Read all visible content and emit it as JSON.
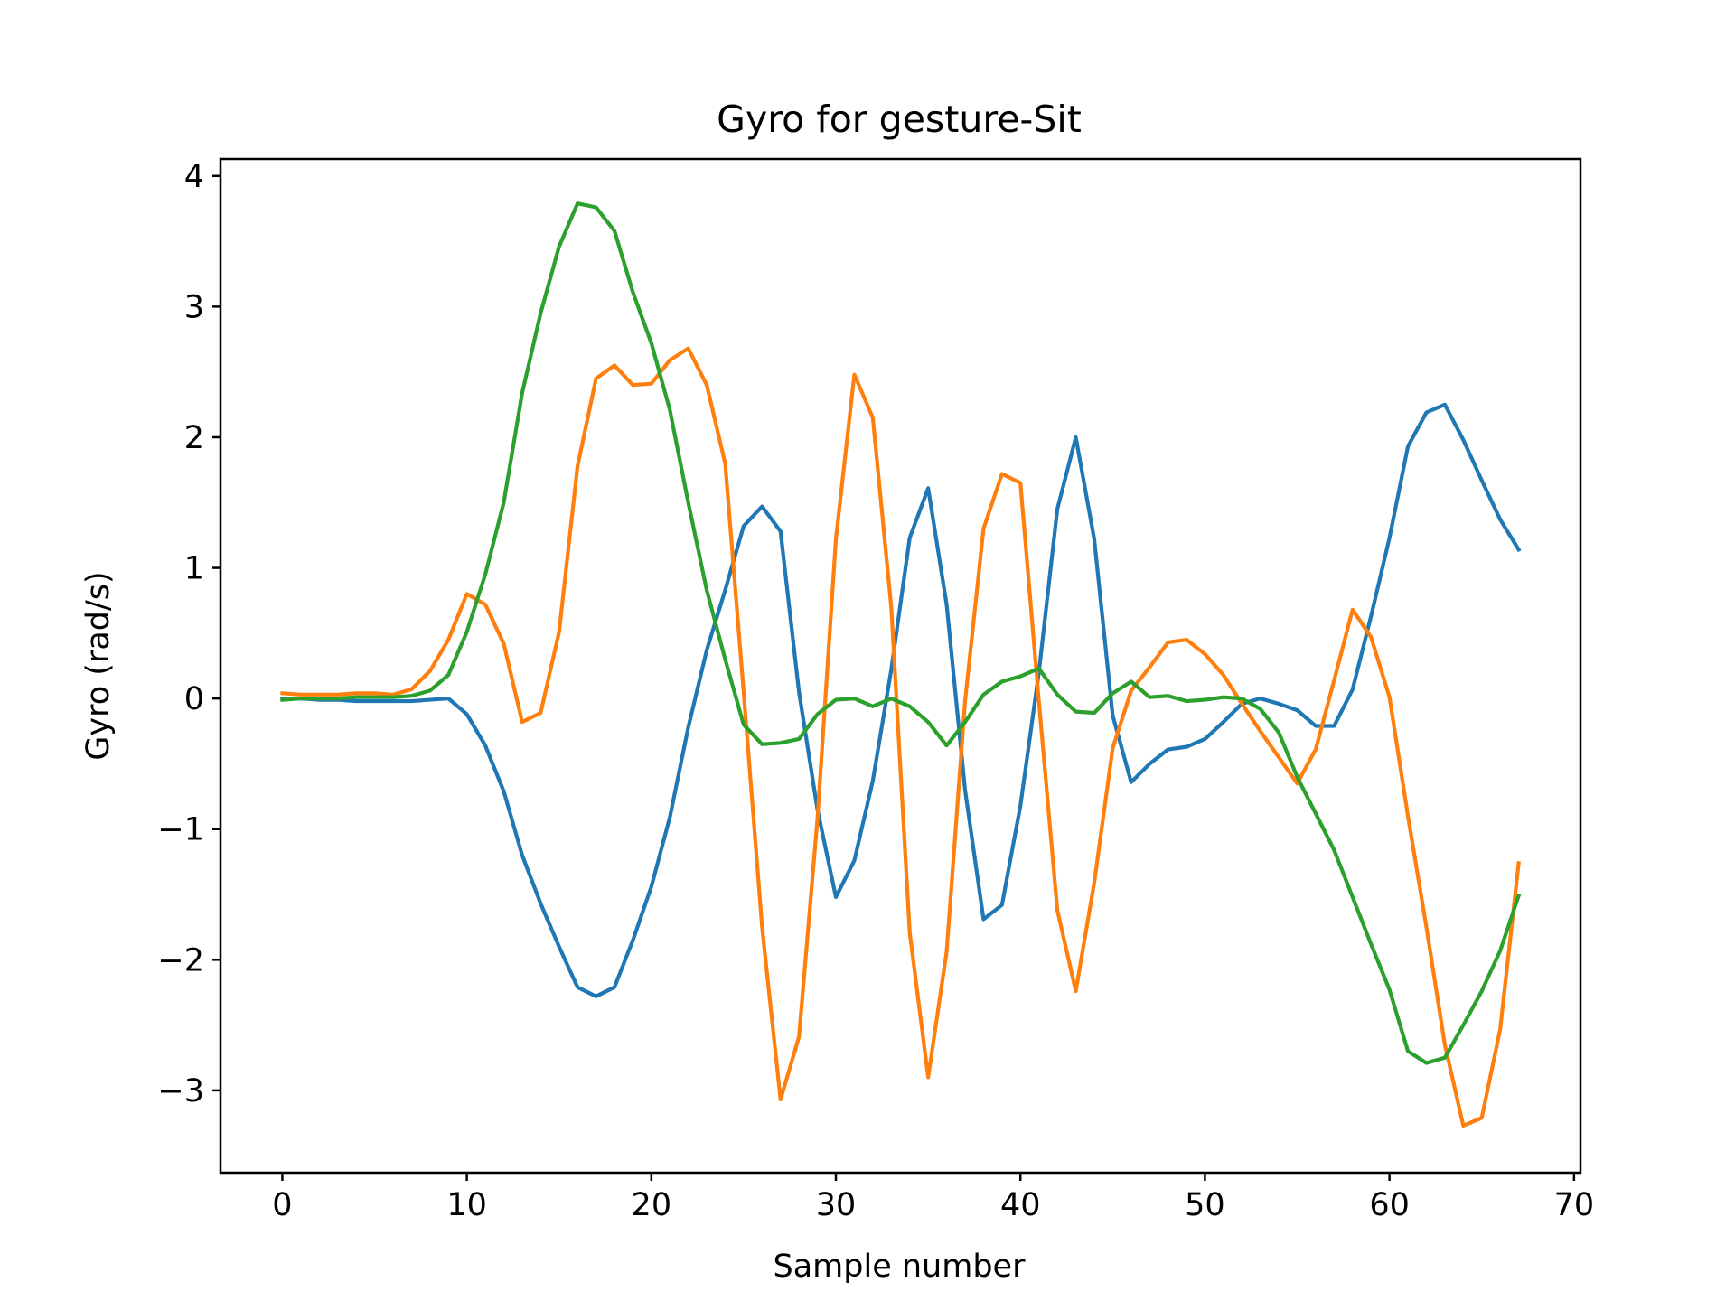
{
  "chart_data": {
    "type": "line",
    "title": "Gyro for gesture-Sit",
    "xlabel": "Sample number",
    "ylabel": "Gyro  (rad/s)",
    "xlim": [
      -3.35,
      70.35
    ],
    "ylim": [
      -3.63,
      4.13
    ],
    "xticks": [
      0,
      10,
      20,
      30,
      40,
      50,
      60,
      70
    ],
    "xtick_labels": [
      "0",
      "10",
      "20",
      "30",
      "40",
      "50",
      "60",
      "70"
    ],
    "yticks": [
      -3,
      -2,
      -1,
      0,
      1,
      2,
      3,
      4
    ],
    "ytick_labels": [
      "−3",
      "−2",
      "−1",
      "0",
      "1",
      "2",
      "3",
      "4"
    ],
    "grid": false,
    "legend": "none",
    "x": [
      0,
      1,
      2,
      3,
      4,
      5,
      6,
      7,
      8,
      9,
      10,
      11,
      12,
      13,
      14,
      15,
      16,
      17,
      18,
      19,
      20,
      21,
      22,
      23,
      24,
      25,
      26,
      27,
      28,
      29,
      30,
      31,
      32,
      33,
      34,
      35,
      36,
      37,
      38,
      39,
      40,
      41,
      42,
      43,
      44,
      45,
      46,
      47,
      48,
      49,
      50,
      51,
      52,
      53,
      54,
      55,
      56,
      57,
      58,
      59,
      60,
      61,
      62,
      63,
      64,
      65,
      66,
      67
    ],
    "series": [
      {
        "color": "#1f77b4",
        "values": [
          0.0,
          0.0,
          -0.01,
          -0.01,
          -0.02,
          -0.02,
          -0.02,
          -0.02,
          -0.01,
          0.0,
          -0.12,
          -0.36,
          -0.71,
          -1.2,
          -1.57,
          -1.9,
          -2.21,
          -2.28,
          -2.21,
          -1.85,
          -1.44,
          -0.91,
          -0.22,
          0.37,
          0.83,
          1.32,
          1.47,
          1.28,
          0.05,
          -0.85,
          -1.52,
          -1.24,
          -0.63,
          0.22,
          1.23,
          1.61,
          0.72,
          -0.7,
          -1.69,
          -1.58,
          -0.82,
          0.2,
          1.45,
          2.0,
          1.22,
          -0.13,
          -0.64,
          -0.5,
          -0.39,
          -0.37,
          -0.31,
          -0.18,
          -0.04,
          0.0,
          -0.04,
          -0.09,
          -0.21,
          -0.21,
          0.07,
          0.63,
          1.23,
          1.93,
          2.19,
          2.25,
          1.98,
          1.67,
          1.37,
          1.14
        ]
      },
      {
        "color": "#ff7f0e",
        "values": [
          0.04,
          0.03,
          0.03,
          0.03,
          0.04,
          0.04,
          0.03,
          0.07,
          0.21,
          0.45,
          0.8,
          0.72,
          0.42,
          -0.18,
          -0.11,
          0.51,
          1.78,
          2.45,
          2.55,
          2.4,
          2.41,
          2.59,
          2.68,
          2.4,
          1.8,
          0.05,
          -1.75,
          -3.07,
          -2.59,
          -0.92,
          1.22,
          2.48,
          2.15,
          0.7,
          -1.79,
          -2.9,
          -1.94,
          -0.02,
          1.3,
          1.72,
          1.65,
          -0.02,
          -1.62,
          -2.24,
          -1.41,
          -0.38,
          0.06,
          0.24,
          0.43,
          0.45,
          0.34,
          0.18,
          -0.04,
          -0.25,
          -0.45,
          -0.65,
          -0.39,
          0.14,
          0.68,
          0.47,
          0.01,
          -0.9,
          -1.75,
          -2.65,
          -3.27,
          -3.21,
          -2.53,
          -1.26
        ]
      },
      {
        "color": "#2ca02c",
        "values": [
          -0.01,
          0.0,
          0.0,
          0.0,
          0.01,
          0.01,
          0.01,
          0.02,
          0.06,
          0.18,
          0.51,
          0.95,
          1.5,
          2.34,
          2.95,
          3.46,
          3.79,
          3.76,
          3.58,
          3.11,
          2.72,
          2.21,
          1.5,
          0.83,
          0.3,
          -0.2,
          -0.35,
          -0.34,
          -0.31,
          -0.12,
          -0.01,
          0.0,
          -0.06,
          0.0,
          -0.06,
          -0.18,
          -0.36,
          -0.18,
          0.03,
          0.13,
          0.17,
          0.23,
          0.03,
          -0.1,
          -0.11,
          0.04,
          0.13,
          0.01,
          0.02,
          -0.02,
          -0.01,
          0.01,
          0.0,
          -0.08,
          -0.26,
          -0.6,
          -0.88,
          -1.16,
          -1.52,
          -1.88,
          -2.23,
          -2.7,
          -2.79,
          -2.75,
          -2.5,
          -2.24,
          -1.93,
          -1.51
        ]
      }
    ]
  }
}
